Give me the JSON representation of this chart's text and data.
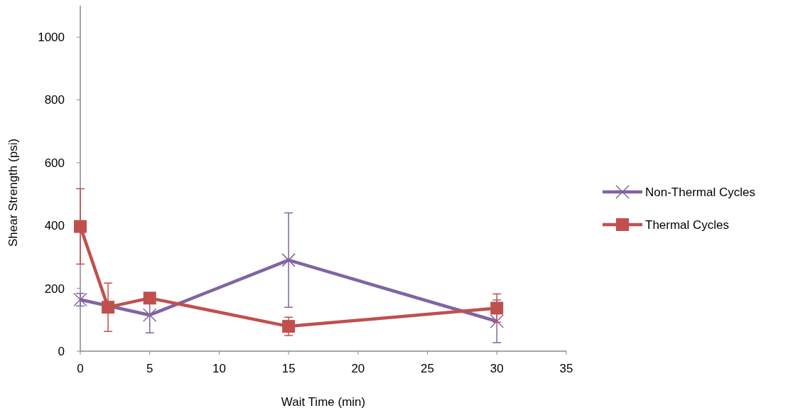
{
  "chart_data": {
    "type": "line",
    "xlabel": "Wait Time (min)",
    "ylabel": "Shear Strength (psi)",
    "x": [
      0,
      2,
      5,
      15,
      30
    ],
    "xlim": [
      0,
      35
    ],
    "xticks": [
      0,
      5,
      10,
      15,
      20,
      25,
      30,
      35
    ],
    "ylim": [
      0,
      1100
    ],
    "yticks": [
      0,
      200,
      400,
      600,
      800,
      1000
    ],
    "grid": false,
    "legend": "right",
    "series": [
      {
        "name": "Non-Thermal Cycles",
        "color": "#8064a2",
        "marker": "cross",
        "values": [
          164,
          null,
          115,
          290,
          95
        ],
        "errors": [
          20,
          null,
          57,
          150,
          68
        ]
      },
      {
        "name": "Thermal Cycles",
        "color": "#c0504d",
        "marker": "square",
        "values": [
          397,
          140,
          169,
          79,
          137
        ],
        "errors": [
          120,
          77,
          null,
          29,
          45
        ]
      }
    ]
  }
}
